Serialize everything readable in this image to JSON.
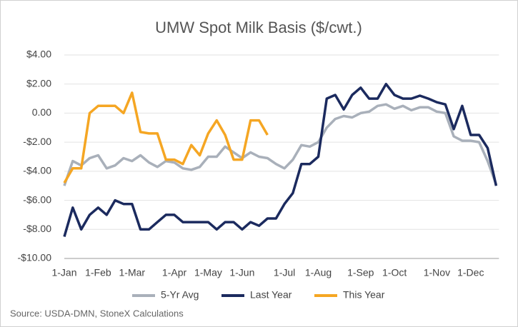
{
  "chart_data": {
    "type": "line",
    "title": "UMW Spot Milk Basis ($/cwt.)",
    "categories": [
      "1-Jan",
      null,
      null,
      null,
      "1-Feb",
      null,
      null,
      null,
      "1-Mar",
      null,
      null,
      null,
      null,
      "1-Apr",
      null,
      null,
      null,
      "1-May",
      null,
      null,
      null,
      "1-Jun",
      null,
      null,
      null,
      null,
      "1-Jul",
      null,
      null,
      null,
      "1-Aug",
      null,
      null,
      null,
      null,
      "1-Sep",
      null,
      null,
      null,
      "1-Oct",
      null,
      null,
      null,
      null,
      "1-Nov",
      null,
      null,
      null,
      "1-Dec",
      null,
      null,
      null
    ],
    "series": [
      {
        "name": "5-Yr Avg",
        "color": "#a9b0ba",
        "values": [
          -5,
          -3.3,
          -3.6,
          -3.1,
          -2.9,
          -3.8,
          -3.6,
          -3.1,
          -3.3,
          -2.9,
          -3.4,
          -3.7,
          -3.3,
          -3.4,
          -3.8,
          -3.9,
          -3.7,
          -3,
          -3,
          -2.3,
          -2.7,
          -3.1,
          -2.7,
          -3,
          -3.1,
          -3.5,
          -3.8,
          -3.2,
          -2.2,
          -2.3,
          -2,
          -1,
          -0.4,
          -0.2,
          -0.3,
          0,
          0.1,
          0.5,
          0.6,
          0.3,
          0.5,
          0.2,
          0.4,
          0.4,
          0.1,
          0,
          -1.6,
          -1.9,
          -1.9,
          -2,
          -3.3,
          -4.9
        ]
      },
      {
        "name": "Last Year",
        "color": "#1b2a5e",
        "values": [
          -8.5,
          -6.5,
          -8,
          -7,
          -6.5,
          -7,
          -6,
          -6.25,
          -6.25,
          -8,
          -8,
          -7.5,
          -7,
          -7,
          -7.5,
          -7.5,
          -7.5,
          -7.5,
          -8,
          -7.5,
          -7.5,
          -8,
          -7.5,
          -7.75,
          -7.25,
          -7.25,
          -6.25,
          -5.5,
          -3.5,
          -3.5,
          -3,
          1,
          1.25,
          0.25,
          1.25,
          1.75,
          1,
          1,
          2,
          1.25,
          1,
          1,
          1.2,
          1,
          0.75,
          0.6,
          -1.1,
          0.5,
          -1.5,
          -1.5,
          -2.4,
          -5
        ]
      },
      {
        "name": "This Year",
        "color": "#f5a623",
        "values": [
          -4.8,
          -3.8,
          -3.8,
          0,
          0.5,
          0.5,
          0.5,
          0,
          1.4,
          -1.3,
          -1.4,
          -1.4,
          -3.2,
          -3.2,
          -3.5,
          -2.2,
          -2.9,
          -1.4,
          -0.5,
          -1.5,
          -3.2,
          -3.2,
          -0.5,
          -0.5,
          -1.5,
          null,
          null,
          null,
          null,
          null,
          null,
          null,
          null,
          null,
          null,
          null,
          null,
          null,
          null,
          null,
          null,
          null,
          null,
          null,
          null,
          null,
          null,
          null,
          null,
          null,
          null,
          null
        ]
      }
    ],
    "ylim": [
      -10,
      4
    ],
    "yticks": [
      {
        "value": -10,
        "label": "-$10.00"
      },
      {
        "value": -8,
        "label": "-$8.00"
      },
      {
        "value": -6,
        "label": "-$6.00"
      },
      {
        "value": -4,
        "label": "-$4.00"
      },
      {
        "value": -2,
        "label": "-$2.00"
      },
      {
        "value": 0,
        "label": "0.00"
      },
      {
        "value": 2,
        "label": "$2.00"
      },
      {
        "value": 4,
        "label": "$4.00"
      }
    ],
    "grid": true,
    "legend": "bottom",
    "source": "Source: USDA-DMN, StoneX Calculations"
  }
}
